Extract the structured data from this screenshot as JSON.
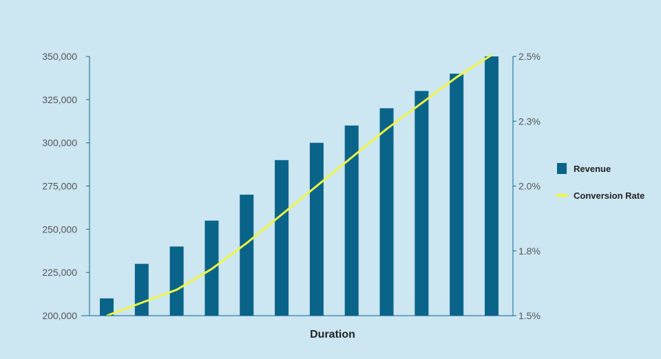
{
  "chart_data": {
    "type": "bar",
    "title": "",
    "xlabel": "Duration",
    "categories": [
      "",
      "",
      "",
      "",
      "",
      "",
      "",
      "",
      "",
      "",
      "",
      ""
    ],
    "series": [
      {
        "name": "Revenue",
        "type": "bar",
        "axis": "left",
        "color": "#0a6489",
        "values": [
          210000,
          230000,
          240000,
          255000,
          270000,
          290000,
          300000,
          310000,
          320000,
          330000,
          340000,
          350000
        ]
      },
      {
        "name": "Conversion Rate",
        "type": "line",
        "axis": "right",
        "color": "#f2f542",
        "values": [
          1.5,
          1.55,
          1.6,
          1.68,
          1.78,
          1.89,
          2.0,
          2.11,
          2.22,
          2.32,
          2.42,
          2.53
        ]
      }
    ],
    "y_left": {
      "ylim": [
        200000,
        350000
      ],
      "ticks": [
        "200,000",
        "225,000",
        "250,000",
        "275,000",
        "300,000",
        "325,000",
        "350,000"
      ]
    },
    "y_right": {
      "ylim": [
        1.5,
        2.5
      ],
      "ticks": [
        "1.5%",
        "1.8%",
        "2.0%",
        "2.3%",
        "2.5%"
      ]
    },
    "grid": false,
    "legend_position": "right"
  },
  "colors": {
    "background": "#cce6f2",
    "axis": "#0a6489"
  }
}
